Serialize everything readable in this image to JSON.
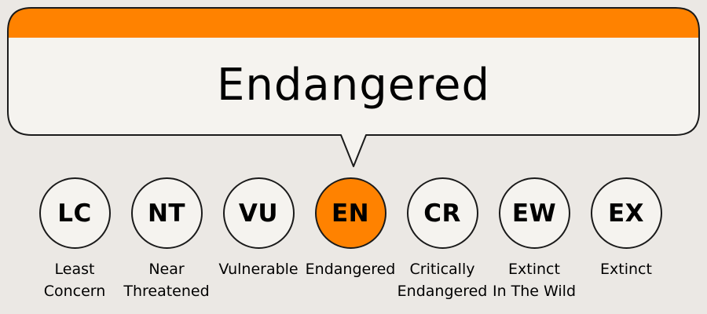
{
  "callout": {
    "title": "Endangered"
  },
  "colors": {
    "accent": "#ff8200",
    "background": "#ebe8e4",
    "panel": "#f5f3ef",
    "outline": "#1a1a1a"
  },
  "statuses": [
    {
      "code": "LC",
      "label_line1": "Least",
      "label_line2": "Concern",
      "active": false
    },
    {
      "code": "NT",
      "label_line1": "Near",
      "label_line2": "Threatened",
      "active": false
    },
    {
      "code": "VU",
      "label_line1": "Vulnerable",
      "label_line2": "",
      "active": false
    },
    {
      "code": "EN",
      "label_line1": "Endangered",
      "label_line2": "",
      "active": true
    },
    {
      "code": "CR",
      "label_line1": "Critically",
      "label_line2": "Endangered",
      "active": false
    },
    {
      "code": "EW",
      "label_line1": "Extinct",
      "label_line2": "In The Wild",
      "active": false
    },
    {
      "code": "EX",
      "label_line1": "Extinct",
      "label_line2": "",
      "active": false
    }
  ]
}
